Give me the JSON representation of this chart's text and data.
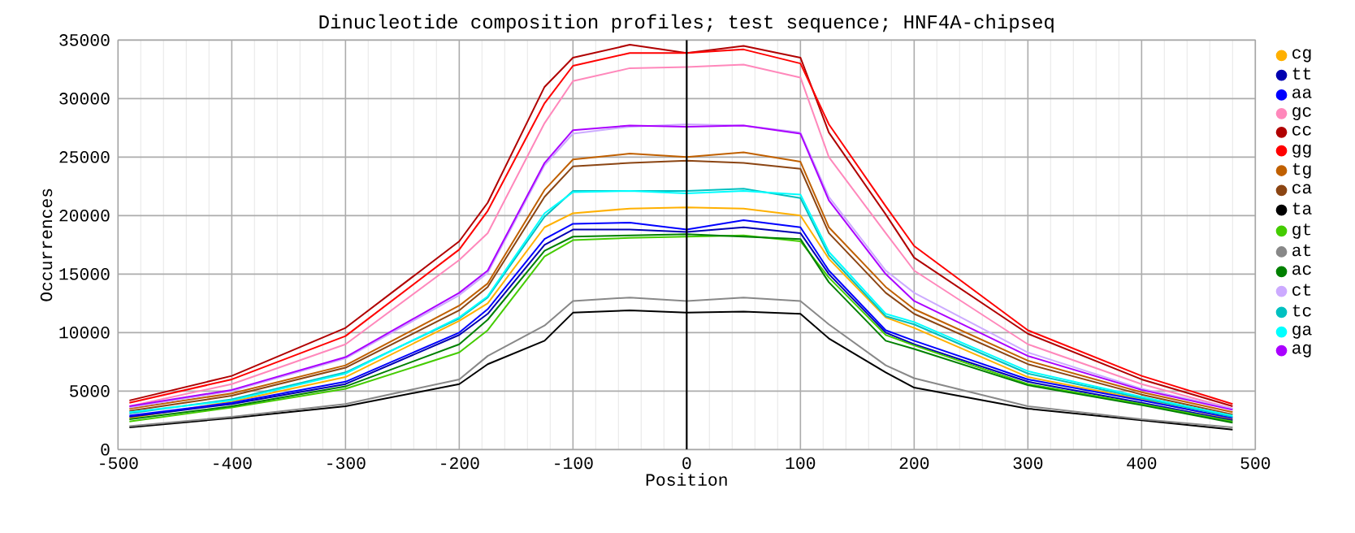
{
  "chart_data": {
    "type": "line",
    "title": "Dinucleotide composition profiles; test sequence; HNF4A-chipseq",
    "xlabel": "Position",
    "ylabel": "Occurrences",
    "x": [
      -490,
      -400,
      -300,
      -200,
      -175,
      -125,
      -100,
      -50,
      0,
      50,
      100,
      125,
      175,
      200,
      300,
      400,
      480
    ],
    "xlim": [
      -500,
      500
    ],
    "ylim": [
      0,
      35000
    ],
    "xticks": [
      -500,
      -400,
      -300,
      -200,
      -100,
      0,
      100,
      200,
      300,
      400,
      500
    ],
    "yticks": [
      0,
      5000,
      10000,
      15000,
      20000,
      25000,
      30000,
      35000
    ],
    "grid": true,
    "legend": "right",
    "ref_lines": [
      {
        "axis": "x",
        "value": 0,
        "color": "#000000"
      }
    ],
    "series": [
      {
        "name": "cg",
        "color": "#ffb000",
        "values": [
          2700,
          4100,
          6200,
          11000,
          12500,
          19000,
          20200,
          20600,
          20700,
          20600,
          20000,
          16300,
          11300,
          10400,
          6200,
          4300,
          2600
        ]
      },
      {
        "name": "tt",
        "color": "#0000b0",
        "values": [
          2800,
          3900,
          5600,
          9800,
          11600,
          17500,
          18800,
          18800,
          18600,
          19000,
          18500,
          15000,
          10000,
          9000,
          5800,
          4000,
          2500
        ]
      },
      {
        "name": "aa",
        "color": "#0000ff",
        "values": [
          2900,
          4000,
          5800,
          10000,
          12000,
          18000,
          19300,
          19400,
          18800,
          19600,
          19000,
          15300,
          10200,
          9300,
          6000,
          4200,
          2700
        ]
      },
      {
        "name": "gc",
        "color": "#ff88bb",
        "values": [
          3700,
          5600,
          9000,
          16200,
          18500,
          27900,
          31500,
          32600,
          32700,
          32900,
          31800,
          25000,
          18500,
          15300,
          9000,
          5600,
          3500
        ]
      },
      {
        "name": "cc",
        "color": "#b00000",
        "values": [
          4200,
          6300,
          10400,
          17800,
          21100,
          31000,
          33500,
          34600,
          33900,
          34500,
          33500,
          27100,
          20100,
          16400,
          9900,
          6000,
          3700
        ]
      },
      {
        "name": "gg",
        "color": "#ff0000",
        "values": [
          4000,
          6000,
          9700,
          17100,
          20400,
          29600,
          32800,
          33900,
          33900,
          34200,
          33000,
          27800,
          20800,
          17400,
          10200,
          6300,
          3900
        ]
      },
      {
        "name": "tg",
        "color": "#c06000",
        "values": [
          3500,
          4800,
          7200,
          12300,
          14200,
          22200,
          24800,
          25300,
          25000,
          25400,
          24600,
          19000,
          13900,
          12000,
          7600,
          4900,
          3200
        ]
      },
      {
        "name": "ca",
        "color": "#8b4513",
        "values": [
          3300,
          4600,
          7000,
          11900,
          13900,
          21600,
          24200,
          24500,
          24700,
          24500,
          24000,
          18500,
          13400,
          11600,
          7300,
          4700,
          3000
        ]
      },
      {
        "name": "ta",
        "color": "#000000",
        "values": [
          1900,
          2700,
          3700,
          5600,
          7300,
          9300,
          11700,
          11900,
          11700,
          11800,
          11600,
          9500,
          6600,
          5300,
          3500,
          2500,
          1700
        ]
      },
      {
        "name": "gt",
        "color": "#44cc00",
        "values": [
          2400,
          3600,
          5200,
          8300,
          10200,
          16500,
          17900,
          18100,
          18200,
          18300,
          17800,
          14700,
          9800,
          8900,
          5600,
          3900,
          2400
        ]
      },
      {
        "name": "at",
        "color": "#888888",
        "values": [
          2000,
          2800,
          3900,
          6000,
          8000,
          10600,
          12700,
          13000,
          12700,
          13000,
          12700,
          10700,
          7200,
          6100,
          3700,
          2600,
          1900
        ]
      },
      {
        "name": "ac",
        "color": "#008000",
        "values": [
          2600,
          3700,
          5400,
          9000,
          11100,
          17000,
          18200,
          18300,
          18400,
          18200,
          18000,
          14300,
          9300,
          8600,
          5500,
          3800,
          2300
        ]
      },
      {
        "name": "ct",
        "color": "#ccaaff",
        "values": [
          3600,
          5000,
          7800,
          13200,
          15100,
          24300,
          27000,
          27600,
          27800,
          27700,
          27100,
          21600,
          15300,
          13400,
          8300,
          5200,
          3500
        ]
      },
      {
        "name": "tc",
        "color": "#00c0c0",
        "values": [
          3100,
          4300,
          6600,
          11200,
          13000,
          19900,
          22100,
          22100,
          22100,
          22300,
          21500,
          16600,
          11400,
          10700,
          6500,
          4400,
          2800
        ]
      },
      {
        "name": "ga",
        "color": "#00ffff",
        "values": [
          3200,
          4200,
          6500,
          11300,
          13100,
          20200,
          22000,
          22100,
          21900,
          22100,
          21800,
          16900,
          11600,
          10900,
          6700,
          4500,
          2900
        ]
      },
      {
        "name": "ag",
        "color": "#aa00ff",
        "values": [
          3700,
          5100,
          7900,
          13400,
          15300,
          24500,
          27300,
          27700,
          27600,
          27700,
          27000,
          21300,
          15000,
          12700,
          8000,
          5100,
          3400
        ]
      }
    ]
  }
}
